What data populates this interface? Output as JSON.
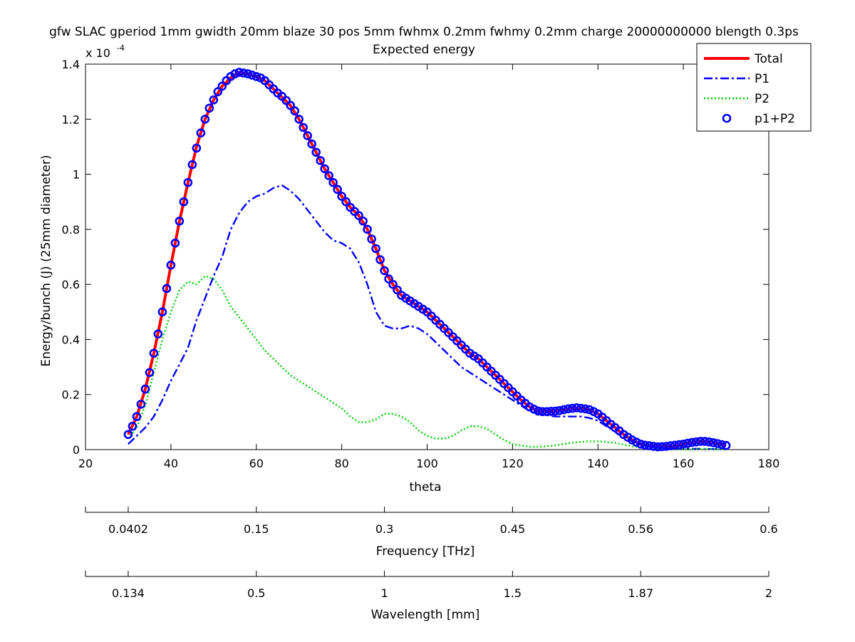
{
  "chart_data": {
    "type": "line",
    "title": "gfw SLAC gperiod 1mm gwidth 20mm blaze 30 pos 5mm fwhmx 0.2mm fwhmy 0.2mm charge 20000000000 blength 0.3ps",
    "subtitle": "Expected energy",
    "xlabel": "theta",
    "ylabel": "Energy/bunch (J) (25mm diameter)",
    "y_exponent_label": "x 10",
    "y_exponent_power": "-4",
    "xlim": [
      20,
      180
    ],
    "ylim": [
      0,
      1.4
    ],
    "xticks": [
      "20",
      "40",
      "60",
      "80",
      "100",
      "120",
      "140",
      "160",
      "180"
    ],
    "yticks": [
      "0",
      "0.2",
      "0.4",
      "0.6",
      "0.8",
      "1",
      "1.2",
      "1.4"
    ],
    "grid": false,
    "legend_position": "top-right",
    "series": [
      {
        "name": "Total",
        "color": "#ff0000",
        "style": "solid",
        "x": [
          30,
          32,
          34,
          36,
          38,
          40,
          42,
          44,
          46,
          48,
          50,
          52,
          54,
          56,
          58,
          60,
          62,
          64,
          66,
          68,
          70,
          72,
          74,
          76,
          78,
          80,
          82,
          84,
          86,
          88,
          90,
          92,
          94,
          96,
          98,
          100,
          102,
          104,
          106,
          108,
          110,
          112,
          114,
          116,
          118,
          120,
          122,
          124,
          126,
          128,
          130,
          132,
          134,
          136,
          138,
          140,
          142,
          144,
          146,
          148,
          150,
          152,
          154,
          156,
          158,
          160,
          162,
          164,
          166,
          168,
          170
        ],
        "y": [
          0.055,
          0.12,
          0.22,
          0.35,
          0.5,
          0.67,
          0.83,
          0.97,
          1.1,
          1.2,
          1.27,
          1.32,
          1.35,
          1.37,
          1.365,
          1.355,
          1.34,
          1.31,
          1.28,
          1.25,
          1.2,
          1.14,
          1.08,
          1.02,
          0.97,
          0.92,
          0.88,
          0.85,
          0.8,
          0.73,
          0.65,
          0.6,
          0.56,
          0.54,
          0.52,
          0.5,
          0.47,
          0.44,
          0.41,
          0.38,
          0.35,
          0.33,
          0.3,
          0.27,
          0.24,
          0.21,
          0.18,
          0.155,
          0.14,
          0.14,
          0.14,
          0.145,
          0.15,
          0.15,
          0.145,
          0.13,
          0.105,
          0.08,
          0.055,
          0.035,
          0.02,
          0.015,
          0.012,
          0.01,
          0.012,
          0.02,
          0.025,
          0.03,
          0.028,
          0.022,
          0.015
        ]
      },
      {
        "name": "P1",
        "color": "#0000ff",
        "style": "dashdot",
        "x": [
          30,
          32,
          34,
          36,
          38,
          40,
          42,
          44,
          46,
          48,
          50,
          52,
          54,
          56,
          58,
          60,
          62,
          64,
          66,
          68,
          70,
          72,
          74,
          76,
          78,
          80,
          82,
          84,
          86,
          88,
          90,
          92,
          94,
          96,
          98,
          100,
          102,
          104,
          106,
          108,
          110,
          112,
          114,
          116,
          118,
          120,
          122,
          124,
          126,
          128,
          130,
          132,
          134,
          136,
          138,
          140,
          142,
          144,
          146,
          148,
          150,
          152,
          154,
          156,
          158,
          160,
          162,
          164,
          166,
          168,
          170
        ],
        "y": [
          0.02,
          0.05,
          0.08,
          0.12,
          0.18,
          0.25,
          0.31,
          0.37,
          0.47,
          0.55,
          0.63,
          0.7,
          0.8,
          0.86,
          0.9,
          0.92,
          0.93,
          0.95,
          0.96,
          0.94,
          0.91,
          0.87,
          0.83,
          0.79,
          0.76,
          0.75,
          0.73,
          0.68,
          0.6,
          0.5,
          0.45,
          0.44,
          0.44,
          0.45,
          0.44,
          0.42,
          0.39,
          0.36,
          0.33,
          0.3,
          0.28,
          0.26,
          0.24,
          0.22,
          0.2,
          0.18,
          0.16,
          0.14,
          0.13,
          0.125,
          0.12,
          0.12,
          0.12,
          0.12,
          0.115,
          0.105,
          0.085,
          0.065,
          0.045,
          0.03,
          0.018,
          0.012,
          0.008,
          0.005,
          0.004,
          0.003,
          0.003,
          0.003,
          0.002,
          0.002,
          0.001
        ]
      },
      {
        "name": "P2",
        "color": "#00cc00",
        "style": "dotted",
        "x": [
          30,
          32,
          34,
          36,
          38,
          40,
          42,
          44,
          46,
          48,
          50,
          52,
          54,
          56,
          58,
          60,
          62,
          64,
          66,
          68,
          70,
          72,
          74,
          76,
          78,
          80,
          82,
          84,
          86,
          88,
          90,
          92,
          94,
          96,
          98,
          100,
          102,
          104,
          106,
          108,
          110,
          112,
          114,
          116,
          118,
          120,
          122,
          124,
          126,
          128,
          130,
          132,
          134,
          136,
          138,
          140,
          142,
          144,
          146,
          148,
          150,
          152,
          154,
          156,
          158,
          160,
          162,
          164,
          166,
          168,
          170
        ],
        "y": [
          0.04,
          0.08,
          0.16,
          0.28,
          0.4,
          0.5,
          0.58,
          0.61,
          0.6,
          0.63,
          0.62,
          0.58,
          0.52,
          0.48,
          0.44,
          0.4,
          0.36,
          0.33,
          0.3,
          0.27,
          0.25,
          0.23,
          0.21,
          0.19,
          0.17,
          0.15,
          0.12,
          0.1,
          0.1,
          0.11,
          0.13,
          0.13,
          0.12,
          0.1,
          0.07,
          0.05,
          0.04,
          0.04,
          0.05,
          0.07,
          0.085,
          0.085,
          0.075,
          0.055,
          0.035,
          0.02,
          0.015,
          0.01,
          0.01,
          0.012,
          0.015,
          0.02,
          0.025,
          0.028,
          0.03,
          0.03,
          0.028,
          0.024,
          0.018,
          0.012,
          0.008,
          0.004,
          0.002,
          0.001,
          0.001,
          0.001,
          0.001,
          0.002,
          0.002,
          0.001,
          0.001
        ]
      },
      {
        "name": "p1+P2",
        "color": "#0000ff",
        "style": "circle",
        "x": [
          30,
          31,
          32,
          33,
          34,
          35,
          36,
          37,
          38,
          39,
          40,
          41,
          42,
          43,
          44,
          45,
          46,
          47,
          48,
          49,
          50,
          51,
          52,
          53,
          54,
          55,
          56,
          57,
          58,
          59,
          60,
          61,
          62,
          63,
          64,
          65,
          66,
          67,
          68,
          69,
          70,
          71,
          72,
          73,
          74,
          75,
          76,
          77,
          78,
          79,
          80,
          81,
          82,
          83,
          84,
          85,
          86,
          87,
          88,
          89,
          90,
          91,
          92,
          93,
          94,
          95,
          96,
          97,
          98,
          99,
          100,
          101,
          102,
          103,
          104,
          105,
          106,
          107,
          108,
          109,
          110,
          111,
          112,
          113,
          114,
          115,
          116,
          117,
          118,
          119,
          120,
          121,
          122,
          123,
          124,
          125,
          126,
          127,
          128,
          129,
          130,
          131,
          132,
          133,
          134,
          135,
          136,
          137,
          138,
          139,
          140,
          141,
          142,
          143,
          144,
          145,
          146,
          147,
          148,
          149,
          150,
          151,
          152,
          153,
          154,
          155,
          156,
          157,
          158,
          159,
          160,
          161,
          162,
          163,
          164,
          165,
          166,
          167,
          168,
          169,
          170
        ],
        "y": [
          0.055,
          0.085,
          0.12,
          0.165,
          0.22,
          0.28,
          0.35,
          0.42,
          0.5,
          0.585,
          0.67,
          0.75,
          0.83,
          0.9,
          0.97,
          1.035,
          1.095,
          1.15,
          1.2,
          1.24,
          1.27,
          1.3,
          1.32,
          1.34,
          1.355,
          1.365,
          1.37,
          1.368,
          1.365,
          1.36,
          1.355,
          1.35,
          1.34,
          1.325,
          1.31,
          1.295,
          1.283,
          1.268,
          1.25,
          1.23,
          1.2,
          1.17,
          1.14,
          1.11,
          1.08,
          1.05,
          1.02,
          0.995,
          0.97,
          0.945,
          0.92,
          0.9,
          0.88,
          0.865,
          0.85,
          0.83,
          0.8,
          0.765,
          0.73,
          0.69,
          0.65,
          0.62,
          0.6,
          0.58,
          0.56,
          0.55,
          0.54,
          0.53,
          0.52,
          0.51,
          0.5,
          0.485,
          0.47,
          0.455,
          0.44,
          0.425,
          0.41,
          0.395,
          0.38,
          0.365,
          0.35,
          0.34,
          0.33,
          0.315,
          0.3,
          0.285,
          0.27,
          0.255,
          0.24,
          0.225,
          0.21,
          0.195,
          0.18,
          0.168,
          0.155,
          0.147,
          0.14,
          0.138,
          0.138,
          0.139,
          0.14,
          0.142,
          0.145,
          0.148,
          0.15,
          0.152,
          0.15,
          0.148,
          0.145,
          0.138,
          0.13,
          0.118,
          0.105,
          0.092,
          0.08,
          0.068,
          0.055,
          0.045,
          0.035,
          0.027,
          0.02,
          0.016,
          0.014,
          0.012,
          0.01,
          0.011,
          0.012,
          0.014,
          0.016,
          0.018,
          0.02,
          0.023,
          0.026,
          0.028,
          0.03,
          0.03,
          0.028,
          0.025,
          0.022,
          0.018,
          0.015
        ]
      }
    ]
  },
  "secondary_axes": [
    {
      "label": "Frequency [THz]",
      "ticks": [
        "0.0402",
        "0.15",
        "0.3",
        "0.45",
        "0.56",
        "0.6"
      ],
      "tick_theta": [
        30,
        60,
        90,
        120,
        150,
        180
      ]
    },
    {
      "label": "Wavelength [mm]",
      "ticks": [
        "0.134",
        "0.5",
        "1",
        "1.5",
        "1.87",
        "2"
      ],
      "tick_theta": [
        30,
        60,
        90,
        120,
        150,
        180
      ]
    }
  ]
}
